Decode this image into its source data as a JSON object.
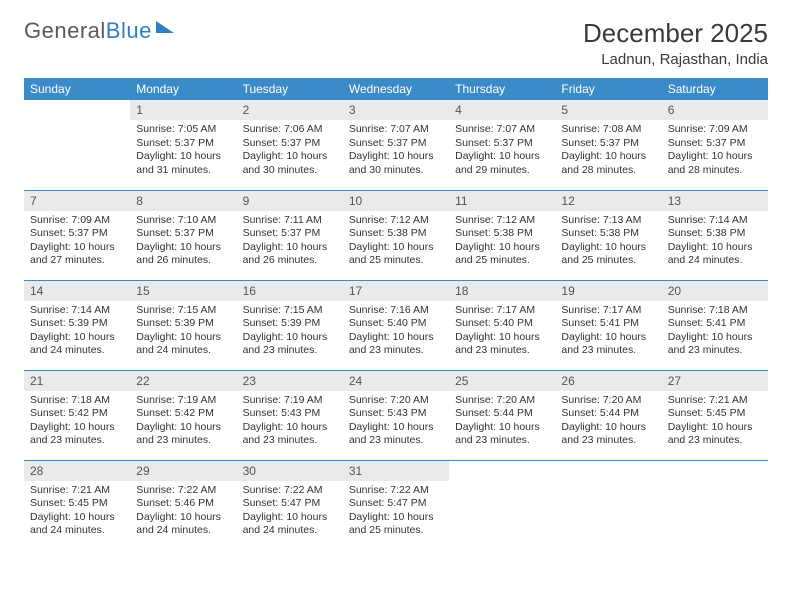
{
  "logo": {
    "word1": "General",
    "word2": "Blue"
  },
  "title": "December 2025",
  "location": "Ladnun, Rajasthan, India",
  "colors": {
    "header_bg": "#3b8bc9",
    "header_fg": "#ffffff",
    "daynum_bg": "#e9eaeb",
    "row_border": "#3b8bc9",
    "logo_gray": "#5a5a5a",
    "logo_blue": "#2f7fc1"
  },
  "font": {
    "month_title_size": 26,
    "location_size": 15,
    "header_size": 12,
    "daynum_size": 12,
    "body_size": 10.5
  },
  "day_headers": [
    "Sunday",
    "Monday",
    "Tuesday",
    "Wednesday",
    "Thursday",
    "Friday",
    "Saturday"
  ],
  "weeks": [
    [
      {
        "num": "",
        "sunrise": "",
        "sunset": "",
        "daylight": ""
      },
      {
        "num": "1",
        "sunrise": "Sunrise: 7:05 AM",
        "sunset": "Sunset: 5:37 PM",
        "daylight": "Daylight: 10 hours and 31 minutes."
      },
      {
        "num": "2",
        "sunrise": "Sunrise: 7:06 AM",
        "sunset": "Sunset: 5:37 PM",
        "daylight": "Daylight: 10 hours and 30 minutes."
      },
      {
        "num": "3",
        "sunrise": "Sunrise: 7:07 AM",
        "sunset": "Sunset: 5:37 PM",
        "daylight": "Daylight: 10 hours and 30 minutes."
      },
      {
        "num": "4",
        "sunrise": "Sunrise: 7:07 AM",
        "sunset": "Sunset: 5:37 PM",
        "daylight": "Daylight: 10 hours and 29 minutes."
      },
      {
        "num": "5",
        "sunrise": "Sunrise: 7:08 AM",
        "sunset": "Sunset: 5:37 PM",
        "daylight": "Daylight: 10 hours and 28 minutes."
      },
      {
        "num": "6",
        "sunrise": "Sunrise: 7:09 AM",
        "sunset": "Sunset: 5:37 PM",
        "daylight": "Daylight: 10 hours and 28 minutes."
      }
    ],
    [
      {
        "num": "7",
        "sunrise": "Sunrise: 7:09 AM",
        "sunset": "Sunset: 5:37 PM",
        "daylight": "Daylight: 10 hours and 27 minutes."
      },
      {
        "num": "8",
        "sunrise": "Sunrise: 7:10 AM",
        "sunset": "Sunset: 5:37 PM",
        "daylight": "Daylight: 10 hours and 26 minutes."
      },
      {
        "num": "9",
        "sunrise": "Sunrise: 7:11 AM",
        "sunset": "Sunset: 5:37 PM",
        "daylight": "Daylight: 10 hours and 26 minutes."
      },
      {
        "num": "10",
        "sunrise": "Sunrise: 7:12 AM",
        "sunset": "Sunset: 5:38 PM",
        "daylight": "Daylight: 10 hours and 25 minutes."
      },
      {
        "num": "11",
        "sunrise": "Sunrise: 7:12 AM",
        "sunset": "Sunset: 5:38 PM",
        "daylight": "Daylight: 10 hours and 25 minutes."
      },
      {
        "num": "12",
        "sunrise": "Sunrise: 7:13 AM",
        "sunset": "Sunset: 5:38 PM",
        "daylight": "Daylight: 10 hours and 25 minutes."
      },
      {
        "num": "13",
        "sunrise": "Sunrise: 7:14 AM",
        "sunset": "Sunset: 5:38 PM",
        "daylight": "Daylight: 10 hours and 24 minutes."
      }
    ],
    [
      {
        "num": "14",
        "sunrise": "Sunrise: 7:14 AM",
        "sunset": "Sunset: 5:39 PM",
        "daylight": "Daylight: 10 hours and 24 minutes."
      },
      {
        "num": "15",
        "sunrise": "Sunrise: 7:15 AM",
        "sunset": "Sunset: 5:39 PM",
        "daylight": "Daylight: 10 hours and 24 minutes."
      },
      {
        "num": "16",
        "sunrise": "Sunrise: 7:15 AM",
        "sunset": "Sunset: 5:39 PM",
        "daylight": "Daylight: 10 hours and 23 minutes."
      },
      {
        "num": "17",
        "sunrise": "Sunrise: 7:16 AM",
        "sunset": "Sunset: 5:40 PM",
        "daylight": "Daylight: 10 hours and 23 minutes."
      },
      {
        "num": "18",
        "sunrise": "Sunrise: 7:17 AM",
        "sunset": "Sunset: 5:40 PM",
        "daylight": "Daylight: 10 hours and 23 minutes."
      },
      {
        "num": "19",
        "sunrise": "Sunrise: 7:17 AM",
        "sunset": "Sunset: 5:41 PM",
        "daylight": "Daylight: 10 hours and 23 minutes."
      },
      {
        "num": "20",
        "sunrise": "Sunrise: 7:18 AM",
        "sunset": "Sunset: 5:41 PM",
        "daylight": "Daylight: 10 hours and 23 minutes."
      }
    ],
    [
      {
        "num": "21",
        "sunrise": "Sunrise: 7:18 AM",
        "sunset": "Sunset: 5:42 PM",
        "daylight": "Daylight: 10 hours and 23 minutes."
      },
      {
        "num": "22",
        "sunrise": "Sunrise: 7:19 AM",
        "sunset": "Sunset: 5:42 PM",
        "daylight": "Daylight: 10 hours and 23 minutes."
      },
      {
        "num": "23",
        "sunrise": "Sunrise: 7:19 AM",
        "sunset": "Sunset: 5:43 PM",
        "daylight": "Daylight: 10 hours and 23 minutes."
      },
      {
        "num": "24",
        "sunrise": "Sunrise: 7:20 AM",
        "sunset": "Sunset: 5:43 PM",
        "daylight": "Daylight: 10 hours and 23 minutes."
      },
      {
        "num": "25",
        "sunrise": "Sunrise: 7:20 AM",
        "sunset": "Sunset: 5:44 PM",
        "daylight": "Daylight: 10 hours and 23 minutes."
      },
      {
        "num": "26",
        "sunrise": "Sunrise: 7:20 AM",
        "sunset": "Sunset: 5:44 PM",
        "daylight": "Daylight: 10 hours and 23 minutes."
      },
      {
        "num": "27",
        "sunrise": "Sunrise: 7:21 AM",
        "sunset": "Sunset: 5:45 PM",
        "daylight": "Daylight: 10 hours and 23 minutes."
      }
    ],
    [
      {
        "num": "28",
        "sunrise": "Sunrise: 7:21 AM",
        "sunset": "Sunset: 5:45 PM",
        "daylight": "Daylight: 10 hours and 24 minutes."
      },
      {
        "num": "29",
        "sunrise": "Sunrise: 7:22 AM",
        "sunset": "Sunset: 5:46 PM",
        "daylight": "Daylight: 10 hours and 24 minutes."
      },
      {
        "num": "30",
        "sunrise": "Sunrise: 7:22 AM",
        "sunset": "Sunset: 5:47 PM",
        "daylight": "Daylight: 10 hours and 24 minutes."
      },
      {
        "num": "31",
        "sunrise": "Sunrise: 7:22 AM",
        "sunset": "Sunset: 5:47 PM",
        "daylight": "Daylight: 10 hours and 25 minutes."
      },
      {
        "num": "",
        "sunrise": "",
        "sunset": "",
        "daylight": ""
      },
      {
        "num": "",
        "sunrise": "",
        "sunset": "",
        "daylight": ""
      },
      {
        "num": "",
        "sunrise": "",
        "sunset": "",
        "daylight": ""
      }
    ]
  ]
}
